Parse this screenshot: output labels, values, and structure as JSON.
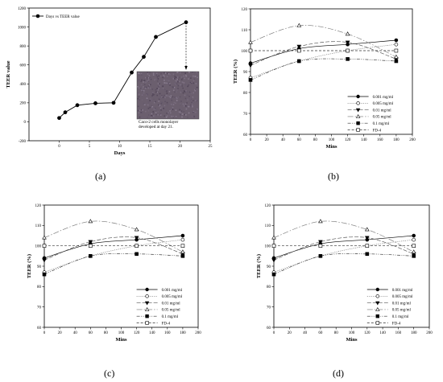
{
  "panels": [
    "(a)",
    "(b)",
    "(c)",
    "(d)"
  ],
  "chart_data": [
    {
      "type": "line",
      "panel": "(a)",
      "xlabel": "Days",
      "ylabel": "TEER value",
      "xlim": [
        -5,
        25
      ],
      "ylim": [
        -200,
        1200
      ],
      "xticks": [
        0,
        5,
        10,
        15,
        20,
        25
      ],
      "yticks": [
        -200,
        0,
        200,
        400,
        600,
        800,
        1000,
        1200
      ],
      "legend": "top-left",
      "series": [
        {
          "name": "Days vs TEER value",
          "x": [
            0,
            1,
            3,
            6,
            9,
            12,
            14,
            16,
            21
          ],
          "y": [
            40,
            100,
            175,
            195,
            200,
            520,
            685,
            895,
            1050
          ]
        }
      ],
      "inset": {
        "caption": [
          "Caco-2 cells monolayer",
          "developed at day 21."
        ],
        "arrow_at_x": 21
      }
    },
    {
      "type": "line",
      "panel": "(b)",
      "xlabel": "Mins",
      "ylabel": "TEER (%)",
      "xlim": [
        0,
        200
      ],
      "ylim": [
        60,
        120
      ],
      "xticks": [
        0,
        20,
        40,
        60,
        80,
        100,
        120,
        140,
        160,
        180,
        200
      ],
      "yticks": [
        60,
        70,
        80,
        90,
        100,
        110,
        120
      ],
      "legend": "bottom-right",
      "x": [
        0,
        60,
        120,
        180
      ],
      "series": [
        {
          "name": "0.001 mg/ml",
          "values": [
            94,
            101,
            103,
            105
          ]
        },
        {
          "name": "0.005 mg/ml",
          "values": [
            87,
            95,
            100,
            103
          ]
        },
        {
          "name": "0.01 mg/ml",
          "values": [
            93,
            102,
            104,
            96
          ]
        },
        {
          "name": "0.05 mg/ml",
          "values": [
            104,
            112,
            108,
            97
          ]
        },
        {
          "name": "0.1 mg/ml",
          "values": [
            86,
            95,
            96,
            95
          ]
        },
        {
          "name": "FD-4",
          "values": [
            100,
            100,
            100,
            100
          ]
        }
      ]
    },
    {
      "type": "line",
      "panel": "(c)",
      "xlabel": "Mins",
      "ylabel": "TEER (%)",
      "xlim": [
        0,
        200
      ],
      "ylim": [
        60,
        120
      ],
      "xticks": [
        0,
        20,
        40,
        60,
        80,
        100,
        120,
        140,
        160,
        180,
        200
      ],
      "yticks": [
        60,
        70,
        80,
        90,
        100,
        110,
        120
      ],
      "legend": "bottom-right",
      "x": [
        0,
        60,
        120,
        180
      ],
      "series": [
        {
          "name": "0.001 mg/ml",
          "values": [
            94,
            101,
            103,
            105
          ]
        },
        {
          "name": "0.005 mg/ml",
          "values": [
            87,
            95,
            100,
            103
          ]
        },
        {
          "name": "0.01 mg/ml",
          "values": [
            93,
            102,
            104,
            96
          ]
        },
        {
          "name": "0.05 mg/ml",
          "values": [
            104,
            112,
            108,
            97
          ]
        },
        {
          "name": "0.1 mg/ml",
          "values": [
            86,
            95,
            96,
            95
          ]
        },
        {
          "name": "FD-4",
          "values": [
            100,
            100,
            100,
            100
          ]
        }
      ]
    },
    {
      "type": "line",
      "panel": "(d)",
      "xlabel": "Mins",
      "ylabel": "TEER (%)",
      "xlim": [
        0,
        200
      ],
      "ylim": [
        60,
        120
      ],
      "xticks": [
        0,
        20,
        40,
        60,
        80,
        100,
        120,
        140,
        160,
        180,
        200
      ],
      "yticks": [
        60,
        70,
        80,
        90,
        100,
        110,
        120
      ],
      "legend": "bottom-right",
      "x": [
        0,
        60,
        120,
        180
      ],
      "series": [
        {
          "name": "0.001 mg/ml",
          "values": [
            94,
            101,
            103,
            105
          ]
        },
        {
          "name": "0.005 mg/ml",
          "values": [
            87,
            95,
            100,
            103
          ]
        },
        {
          "name": "0.01 mg/ml",
          "values": [
            93,
            102,
            104,
            96
          ]
        },
        {
          "name": "0.05 mg/ml",
          "values": [
            104,
            112,
            108,
            97
          ]
        },
        {
          "name": "0.1 mg/ml",
          "values": [
            86,
            95,
            96,
            95
          ]
        },
        {
          "name": "FD-4",
          "values": [
            100,
            100,
            100,
            100
          ]
        }
      ]
    }
  ]
}
